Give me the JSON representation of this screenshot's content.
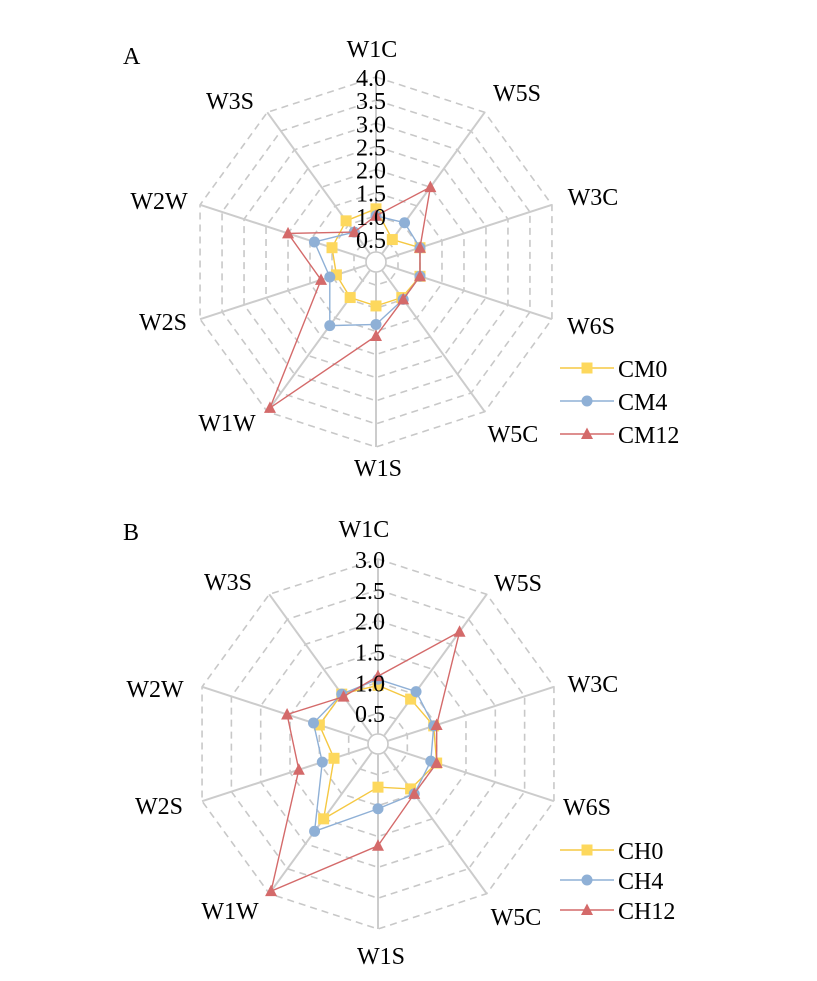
{
  "colors": {
    "grid_ring": "#c8c8c8",
    "spoke": "#cccccc",
    "series_0": "#f5c842",
    "series_0_marker": "#fdd85d",
    "series_1": "#8fb0d6",
    "series_1_marker": "#8fb0d6",
    "series_2": "#d46a6a",
    "series_2_marker": "#d46a6a"
  },
  "chart_data": [
    {
      "panel": "A",
      "type": "radar",
      "axes": [
        "W1C",
        "W5S",
        "W3C",
        "W6S",
        "W5C",
        "W1S",
        "W1W",
        "W2S",
        "W2W",
        "W3S"
      ],
      "rmax": 4.0,
      "ticks": [
        "4.0",
        "3.5",
        "3.0",
        "2.5",
        "2.0",
        "1.5",
        "1.0",
        "0.5"
      ],
      "tick_values": [
        4.0,
        3.5,
        3.0,
        2.5,
        2.0,
        1.5,
        1.0,
        0.5
      ],
      "grid_style": "dashed",
      "legend_position": "right",
      "series": [
        {
          "name": "CM0",
          "marker": "square",
          "values": [
            1.15,
            0.6,
            1.0,
            1.0,
            0.95,
            0.95,
            0.95,
            0.9,
            1.0,
            1.1
          ]
        },
        {
          "name": "CM4",
          "marker": "circle",
          "values": [
            1.0,
            1.05,
            1.0,
            1.0,
            1.0,
            1.35,
            1.7,
            1.05,
            1.4,
            0.8
          ]
        },
        {
          "name": "CM12",
          "marker": "triangle",
          "values": [
            1.0,
            2.0,
            1.0,
            1.0,
            1.0,
            1.6,
            3.9,
            1.25,
            2.0,
            0.8
          ]
        }
      ]
    },
    {
      "panel": "B",
      "type": "radar",
      "axes": [
        "W1C",
        "W5S",
        "W3C",
        "W6S",
        "W5C",
        "W1S",
        "W1W",
        "W2S",
        "W2W",
        "W3S"
      ],
      "rmax": 3.0,
      "ticks": [
        "3.0",
        "2.5",
        "2.0",
        "1.5",
        "1.0",
        "0.5"
      ],
      "tick_values": [
        3.0,
        2.5,
        2.0,
        1.5,
        1.0,
        0.5
      ],
      "grid_style": "dashed",
      "legend_position": "right",
      "series": [
        {
          "name": "CH0",
          "marker": "square",
          "values": [
            0.95,
            0.9,
            0.95,
            1.0,
            0.9,
            0.7,
            1.5,
            0.75,
            1.0,
            1.0
          ]
        },
        {
          "name": "CH4",
          "marker": "circle",
          "values": [
            1.05,
            1.05,
            0.95,
            0.9,
            1.0,
            1.05,
            1.75,
            0.95,
            1.1,
            1.0
          ]
        },
        {
          "name": "CH12",
          "marker": "triangle",
          "values": [
            1.1,
            2.25,
            1.0,
            1.0,
            1.0,
            1.65,
            2.95,
            1.35,
            1.55,
            0.95
          ]
        }
      ]
    }
  ]
}
